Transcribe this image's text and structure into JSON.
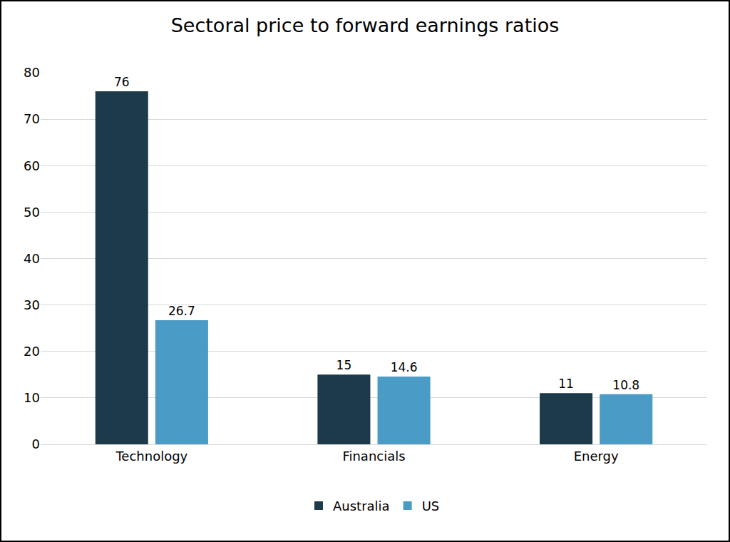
{
  "chart_data": {
    "type": "bar",
    "title": "Sectoral price to forward earnings ratios",
    "categories": [
      "Technology",
      "Financials",
      "Energy"
    ],
    "series": [
      {
        "name": "Australia",
        "color": "#1d3a4b",
        "values": [
          76,
          15,
          11
        ]
      },
      {
        "name": "US",
        "color": "#4a9bc5",
        "values": [
          26.7,
          14.6,
          10.8
        ]
      }
    ],
    "ylim": [
      0,
      80
    ],
    "yticks": [
      0,
      10,
      20,
      30,
      40,
      50,
      60,
      70,
      80
    ],
    "grid": true,
    "data_labels": true,
    "legend": "bottom"
  }
}
